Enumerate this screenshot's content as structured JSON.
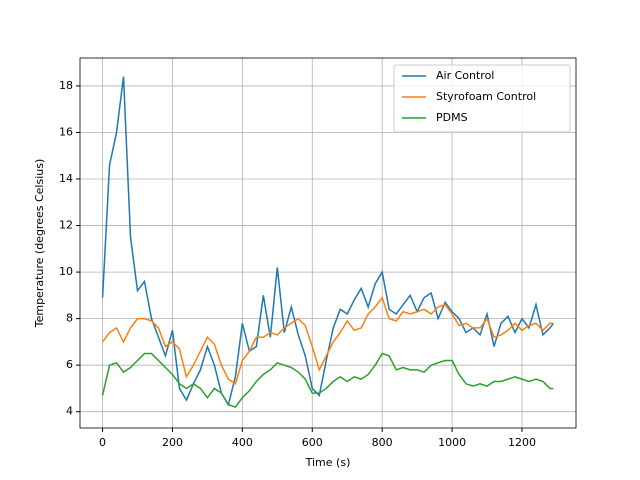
{
  "chart_data": {
    "type": "line",
    "xlabel": "Time (s)",
    "ylabel": "Temperature (degrees Celsius)",
    "x": [
      0,
      20,
      40,
      60,
      80,
      100,
      120,
      140,
      160,
      180,
      200,
      220,
      240,
      260,
      280,
      300,
      320,
      340,
      360,
      380,
      400,
      420,
      440,
      460,
      480,
      500,
      520,
      540,
      560,
      580,
      600,
      620,
      640,
      660,
      680,
      700,
      720,
      740,
      760,
      780,
      800,
      820,
      840,
      860,
      880,
      900,
      920,
      940,
      960,
      980,
      1000,
      1020,
      1040,
      1060,
      1080,
      1100,
      1120,
      1140,
      1160,
      1180,
      1200,
      1220,
      1240,
      1260,
      1280,
      1290
    ],
    "series": [
      {
        "name": "Air Control",
        "color": "#1f77b4",
        "values": [
          8.9,
          14.6,
          16.0,
          18.4,
          11.5,
          9.2,
          9.6,
          8.0,
          7.2,
          6.4,
          7.5,
          5.0,
          4.5,
          5.2,
          5.8,
          6.8,
          6.0,
          4.8,
          4.3,
          5.5,
          7.8,
          6.6,
          6.8,
          9.0,
          7.2,
          10.2,
          7.4,
          8.5,
          7.3,
          6.4,
          5.0,
          4.7,
          6.2,
          7.6,
          8.4,
          8.2,
          8.8,
          9.3,
          8.5,
          9.5,
          10.0,
          8.4,
          8.2,
          8.6,
          9.0,
          8.3,
          8.9,
          9.1,
          8.0,
          8.7,
          8.3,
          8.0,
          7.4,
          7.6,
          7.3,
          8.2,
          6.8,
          7.8,
          8.1,
          7.4,
          8.0,
          7.6,
          8.6,
          7.3,
          7.6,
          7.8
        ]
      },
      {
        "name": "Styrofoam Control",
        "color": "#ff7f0e",
        "values": [
          7.0,
          7.4,
          7.6,
          7.0,
          7.6,
          8.0,
          8.0,
          7.9,
          7.6,
          6.8,
          7.0,
          6.7,
          5.5,
          6.0,
          6.6,
          7.2,
          6.9,
          6.0,
          5.4,
          5.2,
          6.2,
          6.6,
          7.2,
          7.2,
          7.4,
          7.3,
          7.6,
          7.8,
          8.0,
          7.7,
          6.8,
          5.8,
          6.4,
          7.0,
          7.4,
          7.9,
          7.5,
          7.6,
          8.2,
          8.5,
          8.9,
          8.0,
          7.9,
          8.3,
          8.2,
          8.3,
          8.4,
          8.2,
          8.5,
          8.6,
          8.2,
          7.7,
          7.8,
          7.6,
          7.6,
          8.0,
          7.2,
          7.3,
          7.5,
          7.8,
          7.5,
          7.7,
          7.8,
          7.5,
          7.8,
          7.8
        ]
      },
      {
        "name": "PDMS",
        "color": "#2ca02c",
        "values": [
          4.7,
          6.0,
          6.1,
          5.7,
          5.9,
          6.2,
          6.5,
          6.5,
          6.2,
          5.9,
          5.6,
          5.2,
          5.0,
          5.2,
          5.0,
          4.6,
          5.0,
          4.8,
          4.3,
          4.2,
          4.6,
          4.9,
          5.3,
          5.6,
          5.8,
          6.1,
          6.0,
          5.9,
          5.7,
          5.4,
          4.8,
          4.8,
          5.0,
          5.3,
          5.5,
          5.3,
          5.5,
          5.4,
          5.6,
          6.0,
          6.5,
          6.4,
          5.8,
          5.9,
          5.8,
          5.8,
          5.7,
          6.0,
          6.1,
          6.2,
          6.2,
          5.6,
          5.2,
          5.1,
          5.2,
          5.1,
          5.3,
          5.3,
          5.4,
          5.5,
          5.4,
          5.3,
          5.4,
          5.3,
          5.0,
          5.0
        ]
      }
    ],
    "xlim": [
      -64.5,
      1354.5
    ],
    "xticks": [
      0,
      200,
      400,
      600,
      800,
      1000,
      1200
    ],
    "ylim": [
      3.3,
      19.2
    ],
    "yticks": [
      4,
      6,
      8,
      10,
      12,
      14,
      16,
      18
    ],
    "grid": true,
    "legend": "upper right"
  }
}
